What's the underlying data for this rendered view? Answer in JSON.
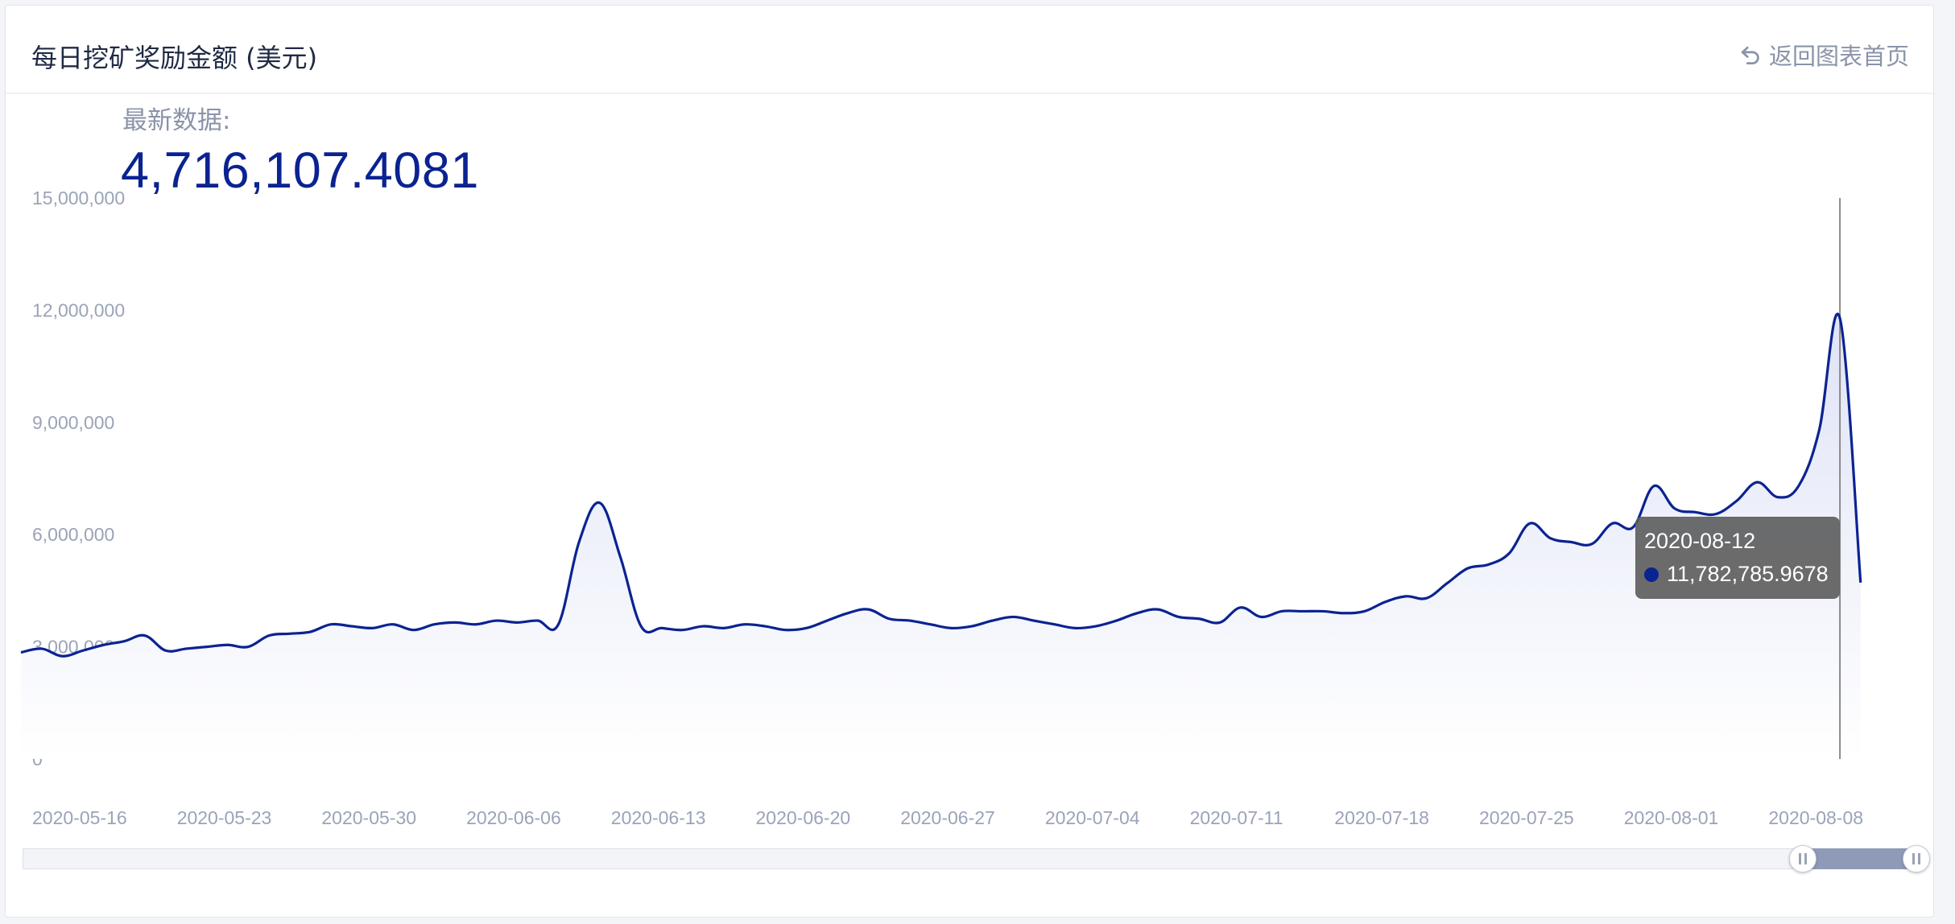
{
  "header": {
    "title": "每日挖矿奖励金额 (美元)",
    "back_label": "返回图表首页"
  },
  "latest": {
    "label": "最新数据:",
    "value": "4,716,107.4081"
  },
  "tooltip": {
    "date": "2020-08-12",
    "value": "11,782,785.9678"
  },
  "zoom": {
    "start": 0.94,
    "end": 1.0
  },
  "colors": {
    "line": "#0b2391",
    "area_top": "#dfe3f6",
    "area_bottom": "#ffffff",
    "axis_text": "#9aa3b8"
  },
  "chart_data": {
    "type": "area",
    "xlabel": "",
    "ylabel": "",
    "ylim": [
      0,
      15000000
    ],
    "yticks": [
      0,
      3000000,
      6000000,
      9000000,
      12000000,
      15000000
    ],
    "ytick_labels": [
      "0",
      "3,000,000",
      "6,000,000",
      "9,000,000",
      "12,000,000",
      "15,000,000"
    ],
    "xtick_labels": [
      "2020-05-16",
      "2020-05-23",
      "2020-05-30",
      "2020-06-06",
      "2020-06-13",
      "2020-06-20",
      "2020-06-27",
      "2020-07-04",
      "2020-07-11",
      "2020-07-18",
      "2020-07-25",
      "2020-08-01",
      "2020-08-08"
    ],
    "grid": false,
    "x": [
      "2020-05-16",
      "2020-05-17",
      "2020-05-18",
      "2020-05-19",
      "2020-05-20",
      "2020-05-21",
      "2020-05-22",
      "2020-05-23",
      "2020-05-24",
      "2020-05-25",
      "2020-05-26",
      "2020-05-27",
      "2020-05-28",
      "2020-05-29",
      "2020-05-30",
      "2020-05-31",
      "2020-06-01",
      "2020-06-02",
      "2020-06-03",
      "2020-06-04",
      "2020-06-05",
      "2020-06-06",
      "2020-06-07",
      "2020-06-08",
      "2020-06-09",
      "2020-06-10",
      "2020-06-11",
      "2020-06-12",
      "2020-06-13",
      "2020-06-14",
      "2020-06-15",
      "2020-06-16",
      "2020-06-17",
      "2020-06-18",
      "2020-06-19",
      "2020-06-20",
      "2020-06-21",
      "2020-06-22",
      "2020-06-23",
      "2020-06-24",
      "2020-06-25",
      "2020-06-26",
      "2020-06-27",
      "2020-06-28",
      "2020-06-29",
      "2020-06-30",
      "2020-07-01",
      "2020-07-02",
      "2020-07-03",
      "2020-07-04",
      "2020-07-05",
      "2020-07-06",
      "2020-07-07",
      "2020-07-08",
      "2020-07-09",
      "2020-07-10",
      "2020-07-11",
      "2020-07-12",
      "2020-07-13",
      "2020-07-14",
      "2020-07-15",
      "2020-07-16",
      "2020-07-17",
      "2020-07-18",
      "2020-07-19",
      "2020-07-20",
      "2020-07-21",
      "2020-07-22",
      "2020-07-23",
      "2020-07-24",
      "2020-07-25",
      "2020-07-26",
      "2020-07-27",
      "2020-07-28",
      "2020-07-29",
      "2020-07-30",
      "2020-07-31",
      "2020-08-01",
      "2020-08-02",
      "2020-08-03",
      "2020-08-04",
      "2020-08-05",
      "2020-08-06",
      "2020-08-07",
      "2020-08-08",
      "2020-08-09",
      "2020-08-10",
      "2020-08-11",
      "2020-08-12",
      "2020-08-13"
    ],
    "series": [
      {
        "values": [
          2850000,
          2950000,
          2750000,
          2900000,
          3050000,
          3150000,
          3300000,
          2900000,
          2950000,
          3000000,
          3050000,
          3000000,
          3300000,
          3350000,
          3400000,
          3600000,
          3550000,
          3500000,
          3600000,
          3450000,
          3600000,
          3650000,
          3600000,
          3700000,
          3650000,
          3700000,
          3600000,
          5800000,
          6850000,
          5400000,
          3550000,
          3500000,
          3450000,
          3550000,
          3500000,
          3600000,
          3550000,
          3450000,
          3500000,
          3700000,
          3900000,
          4000000,
          3750000,
          3700000,
          3600000,
          3500000,
          3550000,
          3700000,
          3800000,
          3700000,
          3600000,
          3500000,
          3550000,
          3700000,
          3900000,
          4000000,
          3800000,
          3750000,
          3650000,
          4050000,
          3800000,
          3950000,
          3950000,
          3950000,
          3900000,
          3950000,
          4200000,
          4350000,
          4300000,
          4700000,
          5100000,
          5200000,
          5500000,
          6300000,
          5900000,
          5800000,
          5750000,
          6300000,
          6200000,
          7300000,
          6700000,
          6600000,
          6550000,
          6900000,
          7400000,
          7000000,
          7300000,
          8800000,
          11782785.9678,
          4716107.4081
        ]
      }
    ]
  }
}
